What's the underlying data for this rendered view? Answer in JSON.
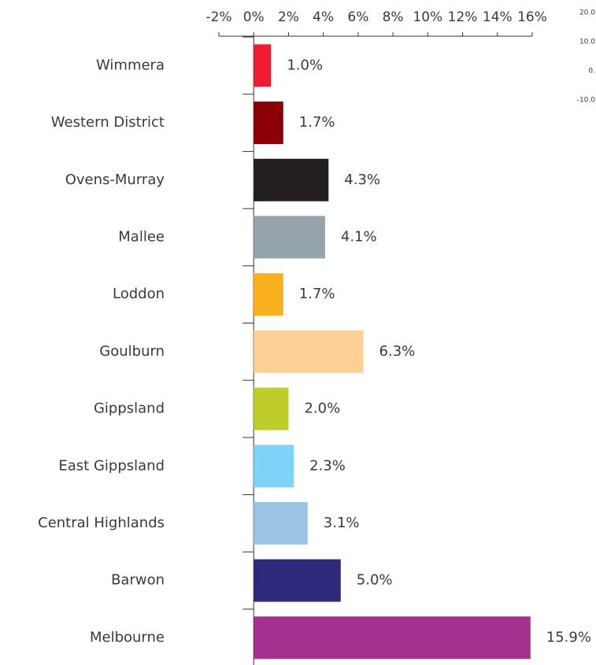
{
  "chart_data": {
    "type": "bar",
    "orientation": "horizontal",
    "categories": [
      "Wimmera",
      "Western District",
      "Ovens-Murray",
      "Mallee",
      "Loddon",
      "Goulburn",
      "Gippsland",
      "East Gippsland",
      "Central Highlands",
      "Barwon",
      "Melbourne"
    ],
    "values": [
      1.0,
      1.7,
      4.3,
      4.1,
      1.7,
      6.3,
      2.0,
      2.3,
      3.1,
      5.0,
      15.9
    ],
    "value_labels": [
      "1.0%",
      "1.7%",
      "4.3%",
      "4.1%",
      "1.7%",
      "6.3%",
      "2.0%",
      "2.3%",
      "3.1%",
      "5.0%",
      "15.9%"
    ],
    "colors": [
      "#ee1c2e",
      "#8b0007",
      "#231f20",
      "#95a4ab",
      "#fbb01f",
      "#fdd096",
      "#bfcd2b",
      "#7ed3f7",
      "#9bc4e3",
      "#2e2a7b",
      "#a3318f"
    ],
    "xlim": [
      -2,
      16
    ],
    "xticks": [
      {
        "value": -2,
        "label": "-2%"
      },
      {
        "value": 0,
        "label": "0%"
      },
      {
        "value": 2,
        "label": "2%"
      },
      {
        "value": 4,
        "label": "4%"
      },
      {
        "value": 6,
        "label": "6%"
      },
      {
        "value": 8,
        "label": "8%"
      },
      {
        "value": 10,
        "label": "10%"
      },
      {
        "value": 12,
        "label": "12%"
      },
      {
        "value": 14,
        "label": "14%"
      },
      {
        "value": 16,
        "label": "16%"
      }
    ],
    "side_labels": [
      "20.0",
      "10.0",
      "0.",
      "-10.0"
    ]
  }
}
